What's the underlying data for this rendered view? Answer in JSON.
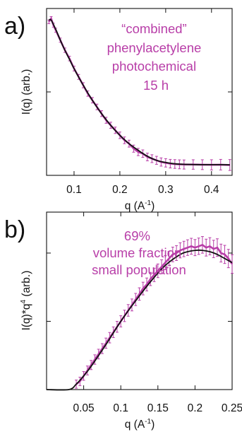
{
  "colors": {
    "data": "#b83ea8",
    "fit": "#111111",
    "axes": "#111111"
  },
  "chart_data": [
    {
      "type": "line",
      "panel_label": "a)",
      "title": "",
      "annotation_lines": [
        "“combined”",
        "phenylacetylene",
        "photochemical",
        "15 h"
      ],
      "xlabel": "q (A",
      "xlabel_sup": "-1",
      "xlabel_close": ")",
      "ylabel": "I(q) (arb.)",
      "xlim": [
        0.04,
        0.445
      ],
      "ylim": [
        0,
        1
      ],
      "x_ticks": [
        0.1,
        0.2,
        0.3,
        0.4
      ],
      "x_tick_labels": [
        "0.1",
        "0.2",
        "0.3",
        "0.4"
      ],
      "y_ticks": [
        0,
        0.5,
        1
      ],
      "y_tick_labels": [
        "",
        "",
        ""
      ],
      "grid": false,
      "series": [
        {
          "style": "points-with-error-bars",
          "color": "#b83ea8",
          "x": [
            0.045,
            0.05,
            0.055,
            0.06,
            0.07,
            0.08,
            0.09,
            0.1,
            0.11,
            0.12,
            0.13,
            0.14,
            0.15,
            0.16,
            0.17,
            0.18,
            0.19,
            0.2,
            0.21,
            0.22,
            0.23,
            0.24,
            0.25,
            0.26,
            0.27,
            0.28,
            0.29,
            0.3,
            0.31,
            0.32,
            0.33,
            0.34,
            0.36,
            0.38,
            0.4,
            0.42,
            0.44
          ],
          "y": [
            0.92,
            0.94,
            0.9,
            0.87,
            0.81,
            0.75,
            0.7,
            0.64,
            0.59,
            0.54,
            0.49,
            0.45,
            0.41,
            0.37,
            0.33,
            0.3,
            0.27,
            0.24,
            0.21,
            0.19,
            0.16,
            0.14,
            0.13,
            0.11,
            0.1,
            0.09,
            0.08,
            0.075,
            0.07,
            0.068,
            0.066,
            0.065,
            0.065,
            0.064,
            0.063,
            0.064,
            0.062
          ]
        },
        {
          "style": "line",
          "color": "#111111",
          "x": [
            0.045,
            0.05,
            0.06,
            0.07,
            0.08,
            0.09,
            0.1,
            0.12,
            0.14,
            0.16,
            0.18,
            0.2,
            0.22,
            0.24,
            0.26,
            0.28,
            0.3,
            0.32,
            0.34,
            0.36,
            0.38,
            0.4,
            0.42,
            0.44
          ],
          "y": [
            0.93,
            0.93,
            0.875,
            0.81,
            0.75,
            0.695,
            0.64,
            0.54,
            0.45,
            0.37,
            0.3,
            0.24,
            0.19,
            0.15,
            0.115,
            0.09,
            0.077,
            0.069,
            0.066,
            0.065,
            0.064,
            0.064,
            0.064,
            0.063
          ]
        }
      ]
    },
    {
      "type": "line",
      "panel_label": "b)",
      "title": "",
      "annotation_lines": [
        "69%",
        "volume fraction",
        "small population"
      ],
      "xlabel": "q (A",
      "xlabel_sup": "-1",
      "xlabel_close": ")",
      "ylabel": "I(q)*q",
      "ylabel_sup": "4",
      "ylabel_rest": " (arb.)",
      "xlim": [
        0.0,
        0.25
      ],
      "ylim": [
        0,
        1.3
      ],
      "x_ticks": [
        0.05,
        0.1,
        0.15,
        0.2,
        0.25
      ],
      "x_tick_labels": [
        "0.05",
        "0.1",
        "0.15",
        "0.2",
        "0.25"
      ],
      "y_ticks": [
        0,
        0.5,
        1.0
      ],
      "y_tick_labels": [
        "",
        "",
        ""
      ],
      "grid": false,
      "series": [
        {
          "style": "points-with-error-bars",
          "color": "#b83ea8",
          "x": [
            0.04,
            0.045,
            0.05,
            0.055,
            0.06,
            0.065,
            0.07,
            0.075,
            0.08,
            0.085,
            0.09,
            0.095,
            0.1,
            0.105,
            0.11,
            0.115,
            0.12,
            0.125,
            0.13,
            0.135,
            0.14,
            0.145,
            0.15,
            0.155,
            0.16,
            0.165,
            0.17,
            0.175,
            0.18,
            0.185,
            0.19,
            0.195,
            0.2,
            0.205,
            0.21,
            0.215,
            0.22,
            0.225,
            0.23,
            0.235,
            0.24,
            0.245,
            0.25
          ],
          "y": [
            0.04,
            0.06,
            0.1,
            0.14,
            0.18,
            0.22,
            0.26,
            0.3,
            0.34,
            0.38,
            0.42,
            0.46,
            0.5,
            0.54,
            0.58,
            0.62,
            0.66,
            0.7,
            0.74,
            0.77,
            0.81,
            0.84,
            0.87,
            0.9,
            0.93,
            0.96,
            0.99,
            1.0,
            1.02,
            1.03,
            1.04,
            1.05,
            1.04,
            1.05,
            1.06,
            1.04,
            1.05,
            1.03,
            1.04,
            1.0,
            0.99,
            0.96,
            0.92
          ]
        },
        {
          "style": "line",
          "color": "#111111",
          "x": [
            0.0,
            0.03,
            0.04,
            0.05,
            0.06,
            0.08,
            0.1,
            0.12,
            0.14,
            0.16,
            0.18,
            0.19,
            0.2,
            0.21,
            0.22,
            0.23,
            0.24,
            0.25
          ],
          "y": [
            0.0,
            0.0,
            0.04,
            0.1,
            0.17,
            0.33,
            0.5,
            0.65,
            0.79,
            0.91,
            0.99,
            1.01,
            1.02,
            1.02,
            1.01,
            0.99,
            0.96,
            0.93
          ]
        }
      ]
    }
  ]
}
